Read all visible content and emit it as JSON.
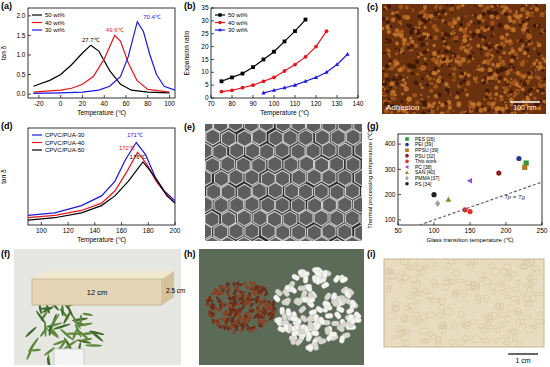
{
  "chart_data": [
    {
      "type": "line",
      "title": "(a)",
      "x_label": "Temperature (℃)",
      "y_label": "tan δ",
      "xlim": [
        -30,
        105
      ],
      "ylim": [
        -0.1,
        2.2
      ],
      "xticks": [
        -20,
        0,
        20,
        40,
        60,
        80,
        100
      ],
      "yticks": [
        {
          "value": 0,
          "label": "0.0"
        },
        {
          "value": 0.5,
          "label": "0.5"
        },
        {
          "value": 1,
          "label": "1.0"
        },
        {
          "value": 1.5,
          "label": "1.5"
        },
        {
          "value": 2,
          "label": "2.0"
        }
      ],
      "legend": "upper left",
      "series": [
        {
          "name": "50 wt%",
          "color": "#000000",
          "x": [
            -25,
            -20,
            -10,
            0,
            10,
            20,
            27.7,
            35,
            45,
            55,
            65,
            80,
            100
          ],
          "values": [
            0.2,
            0.25,
            0.35,
            0.5,
            0.75,
            1.05,
            1.25,
            1.1,
            0.6,
            0.25,
            0.1,
            0.05,
            0.03
          ]
        },
        {
          "name": "40 wt%",
          "color": "#e8141a",
          "x": [
            -25,
            -10,
            0,
            10,
            20,
            30,
            40,
            49.6,
            55,
            62,
            70,
            80,
            100
          ],
          "values": [
            0.05,
            0.08,
            0.1,
            0.15,
            0.25,
            0.45,
            0.9,
            1.5,
            1.35,
            0.8,
            0.35,
            0.12,
            0.05
          ]
        },
        {
          "name": "30 wt%",
          "color": "#1a1ae0",
          "x": [
            -25,
            0,
            20,
            35,
            45,
            55,
            62,
            70.4,
            76,
            82,
            88,
            95,
            105
          ],
          "values": [
            0.02,
            0.03,
            0.05,
            0.1,
            0.2,
            0.45,
            0.95,
            1.85,
            1.6,
            1.0,
            0.5,
            0.2,
            0.1
          ]
        }
      ],
      "annotations": [
        {
          "text": "27.7℃",
          "x": 27.7,
          "y": 1.3,
          "color": "#000000"
        },
        {
          "text": "49.6℃",
          "x": 49.6,
          "y": 1.55,
          "color": "#e8141a"
        },
        {
          "text": "70.4℃",
          "x": 84,
          "y": 1.88,
          "color": "#1a1ae0"
        }
      ]
    },
    {
      "type": "line",
      "title": "(b)",
      "x_label": "Temperature (℃)",
      "y_label": "Expansion ratio",
      "xlim": [
        70,
        140
      ],
      "ylim": [
        0,
        35
      ],
      "xticks": [
        70,
        80,
        90,
        100,
        110,
        120,
        130,
        140
      ],
      "yticks": [
        0,
        5,
        10,
        15,
        20,
        25,
        30,
        35
      ],
      "legend": "upper left",
      "series": [
        {
          "name": "50 wt%",
          "color": "#000000",
          "marker": "square",
          "x": [
            75,
            80,
            85,
            90,
            95,
            100,
            105,
            110,
            115
          ],
          "values": [
            6.5,
            8,
            9.5,
            12,
            15,
            18,
            22,
            26,
            30.5
          ]
        },
        {
          "name": "40 wt%",
          "color": "#e8141a",
          "marker": "circle",
          "x": [
            75,
            80,
            85,
            90,
            95,
            100,
            105,
            110,
            115,
            120,
            125
          ],
          "values": [
            2.5,
            3,
            4,
            5,
            6.5,
            8,
            10.5,
            13,
            16,
            20,
            26
          ]
        },
        {
          "name": "30 wt%",
          "color": "#1a1ae0",
          "marker": "triangle",
          "x": [
            95,
            100,
            105,
            110,
            115,
            120,
            125,
            130,
            135
          ],
          "values": [
            2,
            3,
            4,
            5,
            6.5,
            8,
            10,
            13,
            17
          ]
        }
      ]
    },
    {
      "type": "line",
      "title": "(d)",
      "x_label": "Temperature (℃)",
      "y_label": "tan δ",
      "xlim": [
        90,
        200
      ],
      "ylim": [
        0,
        0.4
      ],
      "xticks": [
        100,
        120,
        140,
        160,
        180,
        200
      ],
      "tick_labels": "x",
      "legend": "upper left",
      "series": [
        {
          "name": "CPVC/PUA-30",
          "color": "#1a1ae0",
          "x": [
            90,
            110,
            130,
            145,
            155,
            163,
            171,
            178,
            185,
            192,
            200
          ],
          "values": [
            0.04,
            0.05,
            0.08,
            0.12,
            0.18,
            0.27,
            0.34,
            0.29,
            0.2,
            0.14,
            0.1
          ]
        },
        {
          "name": "CPVC/PUA-40",
          "color": "#e8141a",
          "x": [
            90,
            110,
            130,
            145,
            155,
            164,
            172,
            179,
            186,
            193,
            200
          ],
          "values": [
            0.03,
            0.04,
            0.06,
            0.09,
            0.14,
            0.22,
            0.3,
            0.25,
            0.18,
            0.13,
            0.09
          ]
        },
        {
          "name": "CPVC/PUA-50",
          "color": "#000000",
          "x": [
            90,
            110,
            130,
            145,
            155,
            165,
            176,
            182,
            188,
            194,
            200
          ],
          "values": [
            0.02,
            0.03,
            0.05,
            0.08,
            0.12,
            0.18,
            0.26,
            0.22,
            0.17,
            0.12,
            0.09
          ]
        }
      ],
      "annotations": [
        {
          "text": "171℃",
          "x": 170,
          "y": 0.355,
          "color": "#1a1ae0"
        },
        {
          "text": "172℃",
          "x": 164,
          "y": 0.305,
          "color": "#e8141a"
        },
        {
          "text": "176℃",
          "x": 172,
          "y": 0.265,
          "color": "#000000"
        }
      ]
    },
    {
      "type": "scatter",
      "title": "(g)",
      "x_label": "Glass transition temperature (℃)",
      "y_label": "Thermal processing temperature (℃)",
      "xlim": [
        50,
        250
      ],
      "ylim": [
        80,
        440
      ],
      "xticks": [
        50,
        100,
        150,
        200,
        250
      ],
      "yticks": [
        100,
        200,
        300,
        400
      ],
      "legend": "upper left",
      "series": [
        {
          "name": "PES [26]",
          "color": "#2e9b3a",
          "marker": "square",
          "x": [
            228
          ],
          "values": [
            325
          ]
        },
        {
          "name": "PEI [39]",
          "color": "#1f3a93",
          "marker": "circle",
          "x": [
            218
          ],
          "values": [
            343
          ]
        },
        {
          "name": "PPSU [39]",
          "color": "#b07a20",
          "marker": "square",
          "x": [
            226
          ],
          "values": [
            308
          ]
        },
        {
          "name": "PSU [32]",
          "color": "#8b1a1a",
          "marker": "hexagon",
          "x": [
            190
          ],
          "values": [
            285
          ]
        },
        {
          "name": "This work",
          "color": "#e03030",
          "marker": "circle",
          "x": [
            143,
            150
          ],
          "values": [
            140,
            133
          ]
        },
        {
          "name": "PC [38]",
          "color": "#8a4fd0",
          "marker": "triangle-left",
          "x": [
            150
          ],
          "values": [
            255
          ]
        },
        {
          "name": "SAN [40]",
          "color": "#8b8b2a",
          "marker": "triangle",
          "x": [
            120
          ],
          "values": [
            180
          ]
        },
        {
          "name": "PMMA [37]",
          "color": "#a0a0a0",
          "marker": "diamond",
          "x": [
            105
          ],
          "values": [
            165
          ]
        },
        {
          "name": "PS [34]",
          "color": "#222222",
          "marker": "circle",
          "x": [
            100
          ],
          "values": [
            200
          ]
        },
        {
          "type": "line",
          "color": "#666666",
          "line_style": "dashed",
          "x": [
            80,
            250
          ],
          "values": [
            80,
            250
          ]
        }
      ],
      "annotations": [
        {
          "text": "Tp = Tg",
          "x": 212,
          "y": 178,
          "color": "#333333"
        }
      ]
    }
  ],
  "images": [
    {
      "title": "(c)",
      "labels": [
        "Adhesion",
        "100 nm"
      ]
    },
    {
      "title": "(e)"
    },
    {
      "title": "(f)",
      "labels": [
        "12 cm",
        "2.5 cm"
      ]
    },
    {
      "title": "(h)"
    },
    {
      "title": "(i)",
      "labels": [
        "1 cm"
      ]
    }
  ]
}
